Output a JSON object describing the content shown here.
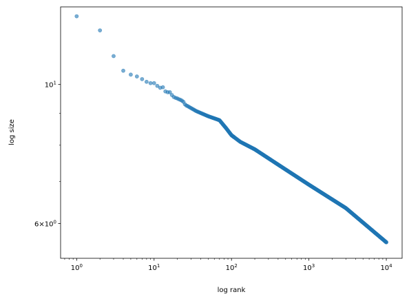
{
  "chart_data": {
    "type": "scatter",
    "title": "",
    "xlabel": "log rank",
    "ylabel": "log size",
    "xscale": "log",
    "yscale": "log",
    "xlim": [
      0.62,
      16000
    ],
    "ylim": [
      5.28,
      13.3
    ],
    "grid": false,
    "legend": "none",
    "point_color": "#1f77b4",
    "point_alpha": 0.6,
    "x_ticks": [
      {
        "value": 1,
        "base": "10",
        "exp": "0"
      },
      {
        "value": 10,
        "base": "10",
        "exp": "1"
      },
      {
        "value": 100,
        "base": "10",
        "exp": "2"
      },
      {
        "value": 1000,
        "base": "10",
        "exp": "3"
      },
      {
        "value": 10000,
        "base": "10",
        "exp": "4"
      }
    ],
    "y_ticks": [
      {
        "value": 10,
        "base": "10",
        "exp": "1",
        "prefix": ""
      },
      {
        "value": 6,
        "base": "10",
        "exp": "0",
        "prefix": "6×"
      }
    ],
    "y_minor_ticks": [
      7,
      8,
      9
    ],
    "series": [
      {
        "outliers": [
          [
            1,
            12.85
          ],
          [
            2,
            12.2
          ],
          [
            3,
            11.1
          ],
          [
            4,
            10.52
          ],
          [
            5,
            10.37
          ],
          [
            6,
            10.3
          ],
          [
            7,
            10.2
          ],
          [
            8,
            10.1
          ],
          [
            9,
            10.05
          ],
          [
            10,
            10.05
          ],
          [
            11,
            9.95
          ],
          [
            12,
            9.88
          ],
          [
            13,
            9.9
          ],
          [
            14,
            9.75
          ],
          [
            15,
            9.72
          ],
          [
            16,
            9.72
          ],
          [
            17,
            9.62
          ],
          [
            18,
            9.55
          ],
          [
            19,
            9.52
          ],
          [
            20,
            9.5
          ],
          [
            21,
            9.47
          ],
          [
            22,
            9.45
          ],
          [
            23,
            9.42
          ],
          [
            24,
            9.38
          ],
          [
            25,
            9.3
          ],
          [
            26,
            9.26
          ],
          [
            27,
            9.24
          ]
        ],
        "curve": [
          [
            27,
            9.24
          ],
          [
            35,
            9.07
          ],
          [
            50,
            8.9
          ],
          [
            70,
            8.77
          ],
          [
            85,
            8.52
          ],
          [
            100,
            8.3
          ],
          [
            130,
            8.1
          ],
          [
            200,
            7.88
          ],
          [
            400,
            7.45
          ],
          [
            1000,
            6.92
          ],
          [
            3000,
            6.35
          ],
          [
            10000,
            5.6
          ]
        ]
      }
    ]
  }
}
